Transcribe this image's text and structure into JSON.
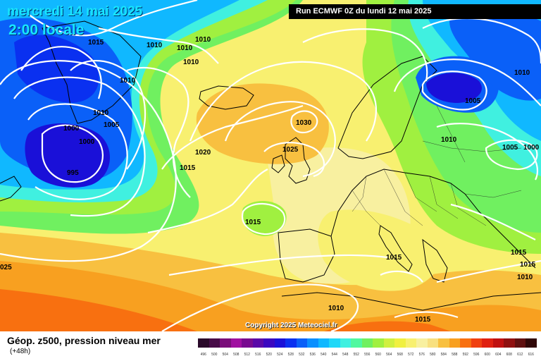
{
  "header": {
    "date": "mercredi 14 mai 2025",
    "local_time": "2:00 locale",
    "run": "Run ECMWF 0Z du lundi 12 mai 2025"
  },
  "copyright": "Copyright 2025 Meteociel.fr",
  "footer": {
    "title": "Géop. z500, pression niveau mer",
    "subtitle": "(+48h)"
  },
  "scale": {
    "labels": [
      "496",
      "500",
      "504",
      "508",
      "512",
      "516",
      "520",
      "524",
      "528",
      "532",
      "536",
      "540",
      "544",
      "548",
      "552",
      "556",
      "560",
      "564",
      "568",
      "572",
      "576",
      "580",
      "584",
      "588",
      "592",
      "596",
      "600",
      "604",
      "608",
      "612",
      "616"
    ],
    "colors": [
      "#2a0a2a",
      "#480c48",
      "#7a0e7a",
      "#a010a0",
      "#780a90",
      "#5a08a8",
      "#3a06c0",
      "#1a10d8",
      "#0a30f0",
      "#0a60f8",
      "#0a90ff",
      "#10b8ff",
      "#20d8f8",
      "#40f0e0",
      "#50f8a0",
      "#70f060",
      "#a0f040",
      "#d0f040",
      "#f0f040",
      "#f8f070",
      "#f8f0a0",
      "#f8e080",
      "#f8c040",
      "#f8a020",
      "#f87010",
      "#f04010",
      "#e02010",
      "#c01010",
      "#901010",
      "#601010",
      "#300808"
    ]
  },
  "isobar_labels": [
    {
      "v": "1015"
    },
    {
      "v": "1010"
    },
    {
      "v": "1010"
    },
    {
      "v": "1010"
    },
    {
      "v": "1010"
    },
    {
      "v": "1010"
    },
    {
      "v": "1010"
    },
    {
      "v": "1005"
    },
    {
      "v": "1000"
    },
    {
      "v": "1000"
    },
    {
      "v": "995"
    },
    {
      "v": "1020"
    },
    {
      "v": "1015"
    },
    {
      "v": "1030"
    },
    {
      "v": "1025"
    },
    {
      "v": "1015"
    },
    {
      "v": "1015"
    },
    {
      "v": "1010"
    },
    {
      "v": "1010"
    },
    {
      "v": "1005"
    },
    {
      "v": "1010"
    },
    {
      "v": "1005"
    },
    {
      "v": "1000"
    },
    {
      "v": "1015"
    },
    {
      "v": "1015"
    },
    {
      "v": "1015"
    },
    {
      "v": "1010"
    },
    {
      "v": "025"
    }
  ]
}
